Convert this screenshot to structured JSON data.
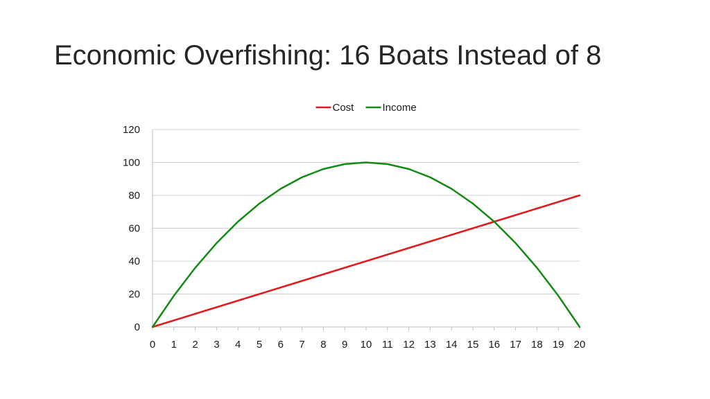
{
  "slide": {
    "title": "Economic Overfishing: 16 Boats Instead of 8"
  },
  "chart_data": {
    "type": "line",
    "title": "",
    "xlabel": "",
    "ylabel": "",
    "x": [
      0,
      1,
      2,
      3,
      4,
      5,
      6,
      7,
      8,
      9,
      10,
      11,
      12,
      13,
      14,
      15,
      16,
      17,
      18,
      19,
      20
    ],
    "ylim": [
      0,
      120
    ],
    "yticks": [
      0,
      20,
      40,
      60,
      80,
      100,
      120
    ],
    "grid": true,
    "legend_position": "top-center",
    "series": [
      {
        "name": "Cost",
        "color": "#e31a1c",
        "values": [
          0,
          4,
          8,
          12,
          16,
          20,
          24,
          28,
          32,
          36,
          40,
          44,
          48,
          52,
          56,
          60,
          64,
          68,
          72,
          76,
          80
        ]
      },
      {
        "name": "Income",
        "color": "#138a13",
        "values": [
          0,
          19,
          36,
          51,
          64,
          75,
          84,
          91,
          96,
          99,
          100,
          99,
          96,
          91,
          84,
          75,
          64,
          51,
          36,
          19,
          0
        ]
      }
    ]
  }
}
